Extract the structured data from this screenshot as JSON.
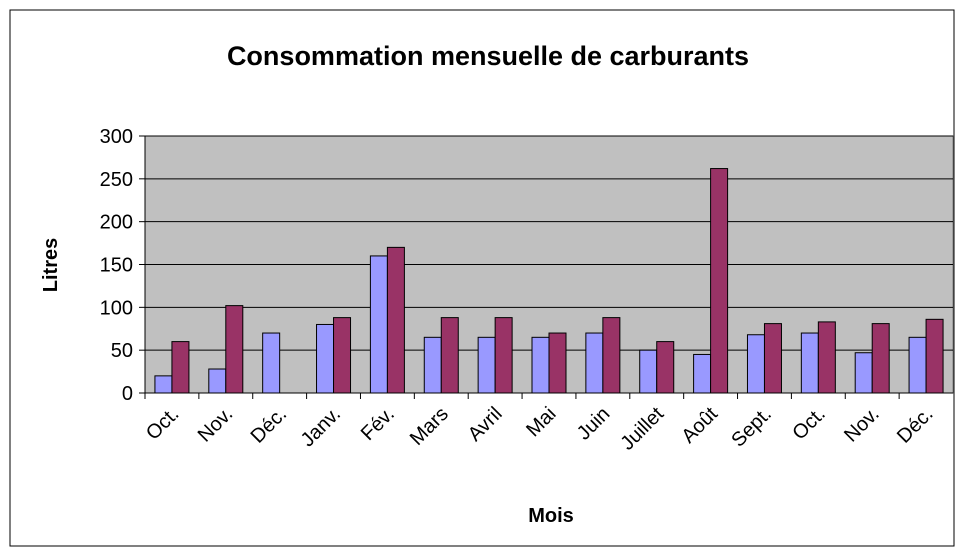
{
  "chart_data": {
    "type": "bar",
    "title": "Consommation mensuelle de carburants",
    "x_label": "Mois",
    "y_label": "Litres",
    "categories": [
      "Oct.",
      "Nov.",
      "Déc.",
      "Janv.",
      "Fév.",
      "Mars",
      "Avril",
      "Mai",
      "Juin",
      "Juillet",
      "Août",
      "Sept.",
      "Oct.",
      "Nov.",
      "Déc."
    ],
    "series": [
      {
        "color": "#9999ff",
        "values": [
          20,
          28,
          70,
          80,
          160,
          65,
          65,
          65,
          70,
          50,
          45,
          68,
          70,
          47,
          65
        ]
      },
      {
        "color": "#993366",
        "values": [
          60,
          102,
          null,
          88,
          170,
          88,
          88,
          70,
          88,
          60,
          262,
          81,
          83,
          81,
          86
        ]
      }
    ],
    "ylim": [
      0,
      300
    ],
    "yticks": [
      0,
      50,
      100,
      150,
      200,
      250,
      300
    ],
    "grid": true
  }
}
